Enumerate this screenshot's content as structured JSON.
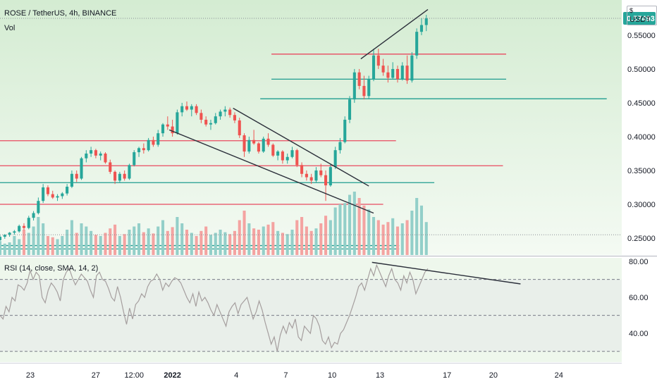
{
  "header": {
    "symbol_title": "ROSE / TetherUS, 4h, BINANCE",
    "volume_label": "Vol",
    "rsi_label": "RSI (14, close, SMA, 14, 2)",
    "currency_unit": "USDT",
    "currency_icon": "circle-dollar-icon"
  },
  "colors": {
    "up": "#26a69a",
    "down": "#ef5350",
    "up_volume": "#93cfc9",
    "down_volume": "#f4a3a1",
    "price_bg_top": "#d4ecd2",
    "price_bg_bottom": "#f4faf3",
    "rsi_bg": "#eef7ec",
    "rsi_line": "#a59e9e",
    "resistance_line": "#e84a5f",
    "support_line": "#1f9c8f",
    "trend_line": "#2b2f3a",
    "last_price_badge": "#26a69a"
  },
  "chart_data": {
    "type": "candlestick",
    "price_axis": {
      "range": [
        0.225,
        0.602
      ],
      "ticks": [
        "0.55000",
        "0.50000",
        "0.45000",
        "0.40000",
        "0.35000",
        "0.30000",
        "0.25000"
      ],
      "tick_values": [
        0.55,
        0.5,
        0.45,
        0.4,
        0.35,
        0.3,
        0.25
      ],
      "last_price": "0.57493",
      "last_price_value": 0.57493
    },
    "time_axis": {
      "labels": [
        "23",
        "27",
        "12:00",
        "2022",
        "4",
        "7",
        "10",
        "13",
        "17",
        "20",
        "24"
      ],
      "bold_labels": [
        "2022"
      ],
      "day_index_range": [
        0,
        33
      ],
      "label_day_index": [
        1.9,
        6.0,
        8.4,
        10.8,
        14.8,
        17.9,
        20.8,
        23.8,
        28.0,
        30.9,
        35.0
      ]
    },
    "candles": [
      [
        0.0,
        0.247,
        0.254,
        0.246,
        0.252
      ],
      [
        0.3,
        0.252,
        0.256,
        0.249,
        0.255
      ],
      [
        0.6,
        0.255,
        0.259,
        0.252,
        0.258
      ],
      [
        0.9,
        0.258,
        0.262,
        0.255,
        0.26
      ],
      [
        1.2,
        0.26,
        0.27,
        0.258,
        0.268
      ],
      [
        1.5,
        0.268,
        0.272,
        0.262,
        0.265
      ],
      [
        1.8,
        0.265,
        0.283,
        0.263,
        0.28
      ],
      [
        2.1,
        0.28,
        0.29,
        0.276,
        0.287
      ],
      [
        2.4,
        0.287,
        0.31,
        0.285,
        0.305
      ],
      [
        2.7,
        0.305,
        0.33,
        0.302,
        0.325
      ],
      [
        3.0,
        0.325,
        0.328,
        0.312,
        0.315
      ],
      [
        3.3,
        0.315,
        0.32,
        0.308,
        0.31
      ],
      [
        3.6,
        0.31,
        0.315,
        0.305,
        0.312
      ],
      [
        3.9,
        0.312,
        0.318,
        0.308,
        0.316
      ],
      [
        4.2,
        0.316,
        0.33,
        0.313,
        0.326
      ],
      [
        4.5,
        0.326,
        0.35,
        0.324,
        0.345
      ],
      [
        4.8,
        0.345,
        0.35,
        0.333,
        0.338
      ],
      [
        5.1,
        0.338,
        0.37,
        0.336,
        0.368
      ],
      [
        5.4,
        0.368,
        0.38,
        0.362,
        0.375
      ],
      [
        5.7,
        0.375,
        0.385,
        0.37,
        0.38
      ],
      [
        6.0,
        0.38,
        0.382,
        0.368,
        0.372
      ],
      [
        6.3,
        0.372,
        0.378,
        0.365,
        0.375
      ],
      [
        6.6,
        0.375,
        0.377,
        0.36,
        0.362
      ],
      [
        6.9,
        0.362,
        0.366,
        0.345,
        0.348
      ],
      [
        7.2,
        0.348,
        0.35,
        0.33,
        0.335
      ],
      [
        7.5,
        0.335,
        0.348,
        0.332,
        0.345
      ],
      [
        7.8,
        0.345,
        0.35,
        0.335,
        0.338
      ],
      [
        8.1,
        0.338,
        0.36,
        0.336,
        0.358
      ],
      [
        8.4,
        0.358,
        0.38,
        0.356,
        0.377
      ],
      [
        8.7,
        0.377,
        0.385,
        0.37,
        0.383
      ],
      [
        9.0,
        0.383,
        0.39,
        0.375,
        0.38
      ],
      [
        9.3,
        0.38,
        0.398,
        0.378,
        0.395
      ],
      [
        9.6,
        0.395,
        0.4,
        0.385,
        0.388
      ],
      [
        9.9,
        0.388,
        0.41,
        0.385,
        0.405
      ],
      [
        10.2,
        0.405,
        0.42,
        0.4,
        0.418
      ],
      [
        10.5,
        0.418,
        0.43,
        0.41,
        0.415
      ],
      [
        10.8,
        0.415,
        0.425,
        0.4,
        0.405
      ],
      [
        11.1,
        0.405,
        0.44,
        0.403,
        0.436
      ],
      [
        11.4,
        0.436,
        0.45,
        0.43,
        0.445
      ],
      [
        11.7,
        0.445,
        0.452,
        0.438,
        0.44
      ],
      [
        12.0,
        0.44,
        0.448,
        0.43,
        0.445
      ],
      [
        12.3,
        0.445,
        0.448,
        0.432,
        0.435
      ],
      [
        12.6,
        0.435,
        0.44,
        0.42,
        0.425
      ],
      [
        12.9,
        0.425,
        0.43,
        0.415,
        0.418
      ],
      [
        13.2,
        0.418,
        0.425,
        0.41,
        0.42
      ],
      [
        13.5,
        0.42,
        0.435,
        0.418,
        0.43
      ],
      [
        13.8,
        0.43,
        0.44,
        0.425,
        0.437
      ],
      [
        14.1,
        0.437,
        0.445,
        0.43,
        0.44
      ],
      [
        14.4,
        0.44,
        0.443,
        0.428,
        0.432
      ],
      [
        14.7,
        0.432,
        0.436,
        0.42,
        0.424
      ],
      [
        15.0,
        0.424,
        0.428,
        0.398,
        0.402
      ],
      [
        15.3,
        0.402,
        0.405,
        0.37,
        0.378
      ],
      [
        15.6,
        0.378,
        0.4,
        0.375,
        0.395
      ],
      [
        15.9,
        0.395,
        0.41,
        0.388,
        0.39
      ],
      [
        16.2,
        0.39,
        0.392,
        0.375,
        0.378
      ],
      [
        16.5,
        0.378,
        0.4,
        0.376,
        0.397
      ],
      [
        16.8,
        0.397,
        0.405,
        0.385,
        0.388
      ],
      [
        17.1,
        0.388,
        0.39,
        0.37,
        0.372
      ],
      [
        17.4,
        0.372,
        0.38,
        0.365,
        0.378
      ],
      [
        17.7,
        0.378,
        0.38,
        0.36,
        0.365
      ],
      [
        18.0,
        0.365,
        0.375,
        0.36,
        0.37
      ],
      [
        18.3,
        0.37,
        0.385,
        0.368,
        0.38
      ],
      [
        18.6,
        0.38,
        0.382,
        0.355,
        0.358
      ],
      [
        18.9,
        0.358,
        0.362,
        0.34,
        0.345
      ],
      [
        19.2,
        0.345,
        0.35,
        0.335,
        0.34
      ],
      [
        19.5,
        0.34,
        0.345,
        0.33,
        0.335
      ],
      [
        19.8,
        0.335,
        0.355,
        0.332,
        0.35
      ],
      [
        20.1,
        0.35,
        0.36,
        0.34,
        0.343
      ],
      [
        20.4,
        0.343,
        0.35,
        0.305,
        0.328
      ],
      [
        20.7,
        0.328,
        0.36,
        0.326,
        0.355
      ],
      [
        21.0,
        0.355,
        0.385,
        0.352,
        0.38
      ],
      [
        21.3,
        0.38,
        0.398,
        0.375,
        0.392
      ],
      [
        21.6,
        0.392,
        0.43,
        0.39,
        0.425
      ],
      [
        21.9,
        0.425,
        0.46,
        0.42,
        0.455
      ],
      [
        22.2,
        0.455,
        0.5,
        0.45,
        0.495
      ],
      [
        22.5,
        0.495,
        0.5,
        0.47,
        0.475
      ],
      [
        22.8,
        0.475,
        0.49,
        0.455,
        0.46
      ],
      [
        23.1,
        0.46,
        0.49,
        0.456,
        0.485
      ],
      [
        23.4,
        0.485,
        0.53,
        0.482,
        0.52
      ],
      [
        23.7,
        0.52,
        0.53,
        0.5,
        0.505
      ],
      [
        24.0,
        0.505,
        0.515,
        0.49,
        0.495
      ],
      [
        24.3,
        0.495,
        0.505,
        0.48,
        0.487
      ],
      [
        24.6,
        0.487,
        0.51,
        0.485,
        0.5
      ],
      [
        24.9,
        0.5,
        0.505,
        0.48,
        0.485
      ],
      [
        25.2,
        0.485,
        0.51,
        0.483,
        0.505
      ],
      [
        25.5,
        0.505,
        0.52,
        0.478,
        0.483
      ],
      [
        25.8,
        0.483,
        0.525,
        0.48,
        0.52
      ],
      [
        26.1,
        0.52,
        0.56,
        0.515,
        0.555
      ],
      [
        26.4,
        0.555,
        0.575,
        0.55,
        0.565
      ],
      [
        26.7,
        0.565,
        0.58,
        0.556,
        0.575
      ]
    ],
    "volume_heights": [
      0.22,
      0.18,
      0.2,
      0.3,
      0.25,
      0.4,
      0.35,
      0.45,
      0.6,
      0.5,
      0.3,
      0.28,
      0.25,
      0.3,
      0.4,
      0.55,
      0.35,
      0.5,
      0.45,
      0.38,
      0.32,
      0.3,
      0.35,
      0.42,
      0.48,
      0.3,
      0.33,
      0.4,
      0.45,
      0.5,
      0.36,
      0.42,
      0.34,
      0.45,
      0.55,
      0.38,
      0.44,
      0.6,
      0.5,
      0.4,
      0.35,
      0.3,
      0.38,
      0.45,
      0.32,
      0.35,
      0.4,
      0.36,
      0.33,
      0.38,
      0.55,
      0.7,
      0.5,
      0.42,
      0.4,
      0.45,
      0.48,
      0.52,
      0.38,
      0.35,
      0.33,
      0.4,
      0.55,
      0.6,
      0.45,
      0.38,
      0.42,
      0.5,
      0.62,
      0.55,
      0.75,
      0.8,
      0.82,
      0.95,
      1.0,
      0.9,
      0.78,
      0.72,
      0.6,
      0.55,
      0.48,
      0.52,
      0.58,
      0.45,
      0.5,
      0.55,
      0.7,
      0.9,
      0.78,
      0.52
    ],
    "horizontal_levels": [
      {
        "kind": "resistance",
        "price": 0.522,
        "from_day": 17.0,
        "to_day": 31.7
      },
      {
        "kind": "support",
        "price": 0.485,
        "from_day": 17.0,
        "to_day": 31.7
      },
      {
        "kind": "support",
        "price": 0.456,
        "from_day": 16.3,
        "to_day": 38.0
      },
      {
        "kind": "resistance",
        "price": 0.394,
        "from_day": -3.0,
        "to_day": 24.8
      },
      {
        "kind": "resistance",
        "price": 0.357,
        "from_day": -3.0,
        "to_day": 31.5
      },
      {
        "kind": "support",
        "price": 0.332,
        "from_day": -3.0,
        "to_day": 27.2
      },
      {
        "kind": "resistance",
        "price": 0.3,
        "from_day": -3.0,
        "to_day": 24.0
      },
      {
        "kind": "support",
        "price": 0.239,
        "from_day": -3.0,
        "to_day": 25.0
      },
      {
        "kind": "support",
        "price": 0.234,
        "from_day": -3.0,
        "to_day": 25.0
      }
    ],
    "trend_lines": [
      {
        "from": [
          10.6,
          0.41
        ],
        "to": [
          23.4,
          0.287
        ]
      },
      {
        "from": [
          14.6,
          0.442
        ],
        "to": [
          23.1,
          0.327
        ]
      },
      {
        "from": [
          22.6,
          0.515
        ],
        "to": [
          26.8,
          0.588
        ]
      }
    ],
    "rsi": {
      "range": [
        24,
        82
      ],
      "ticks": [
        "80.00",
        "60.00",
        "40.00"
      ],
      "tick_values": [
        80,
        60,
        40
      ],
      "band_upper": 70,
      "band_middle": 50,
      "band_lower": 30,
      "values": [
        50,
        48,
        55,
        52,
        60,
        58,
        67,
        66,
        64,
        68,
        75,
        70,
        74,
        72,
        60,
        57,
        64,
        68,
        66,
        63,
        58,
        70,
        74,
        76,
        71,
        67,
        70,
        73,
        71,
        69,
        64,
        60,
        72,
        74,
        70,
        69,
        65,
        60,
        58,
        66,
        60,
        52,
        45,
        54,
        48,
        56,
        58,
        62,
        60,
        66,
        69,
        70,
        73,
        70,
        64,
        68,
        66,
        69,
        71,
        70,
        68,
        64,
        60,
        57,
        62,
        55,
        63,
        58,
        60,
        57,
        53,
        50,
        56,
        52,
        48,
        44,
        52,
        55,
        57,
        51,
        56,
        58,
        60,
        54,
        48,
        52,
        58,
        53,
        46,
        40,
        34,
        38,
        30,
        39,
        44,
        40,
        46,
        43,
        48,
        38,
        36,
        44,
        42,
        40,
        50,
        48,
        44,
        36,
        34,
        38,
        32,
        35,
        34,
        40,
        42,
        46,
        50,
        55,
        60,
        66,
        68,
        64,
        70,
        76,
        72,
        78,
        74,
        70,
        66,
        72,
        76,
        70,
        68,
        64,
        72,
        68,
        74,
        70,
        62,
        66,
        70,
        74,
        76
      ],
      "trend_line": {
        "from": [
          23.3,
          79.5
        ],
        "to": [
          32.6,
          67.5
        ]
      }
    }
  }
}
